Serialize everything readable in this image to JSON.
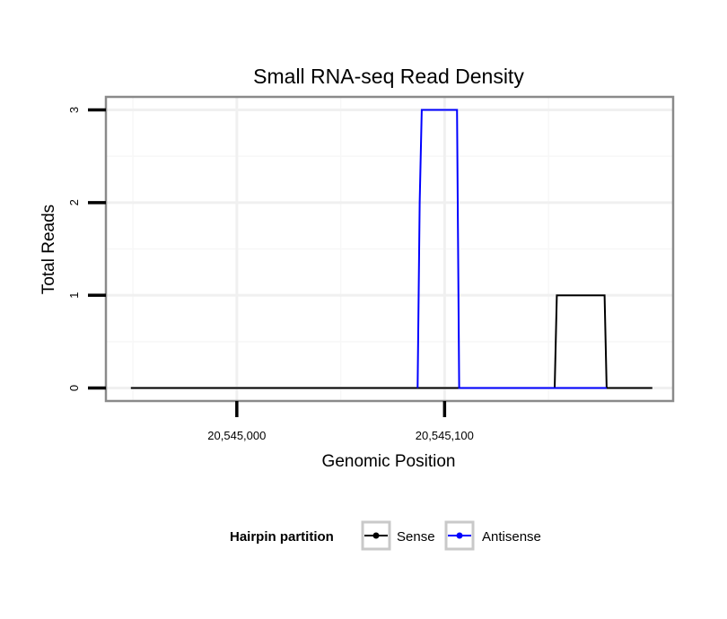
{
  "chart_data": {
    "type": "line",
    "title": "Small RNA-seq Read Density",
    "xlabel": "Genomic Position",
    "ylabel": "Total Reads",
    "xlim": [
      20544937,
      20545210
    ],
    "ylim": [
      -0.14,
      3.14
    ],
    "x_ticks": [
      20545000,
      20545100
    ],
    "x_tick_labels": [
      "20,545,000",
      "20,545,100"
    ],
    "x_minor_ticks": [
      20544950,
      20545050,
      20545150
    ],
    "y_ticks": [
      0,
      1,
      2,
      3
    ],
    "y_tick_labels": [
      "0",
      "1",
      "2",
      "3"
    ],
    "y_minor_ticks": [
      0.5,
      1.5,
      2.5
    ],
    "grid": true,
    "legend": {
      "title": "Hairpin partition",
      "position": "bottom",
      "entries": [
        "Sense",
        "Antisense"
      ]
    },
    "series": [
      {
        "name": "Sense",
        "color": "#000000",
        "x": [
          20544949,
          20545153,
          20545154,
          20545177,
          20545178,
          20545200
        ],
        "y": [
          0,
          0,
          1,
          1,
          0,
          0
        ]
      },
      {
        "name": "Antisense",
        "color": "#0000ff",
        "x": [
          20545087,
          20545088,
          20545089,
          20545106,
          20545107,
          20545153,
          20545154,
          20545177,
          20545178
        ],
        "y": [
          0,
          2,
          3,
          3,
          0,
          0,
          0,
          0,
          0
        ]
      }
    ]
  }
}
